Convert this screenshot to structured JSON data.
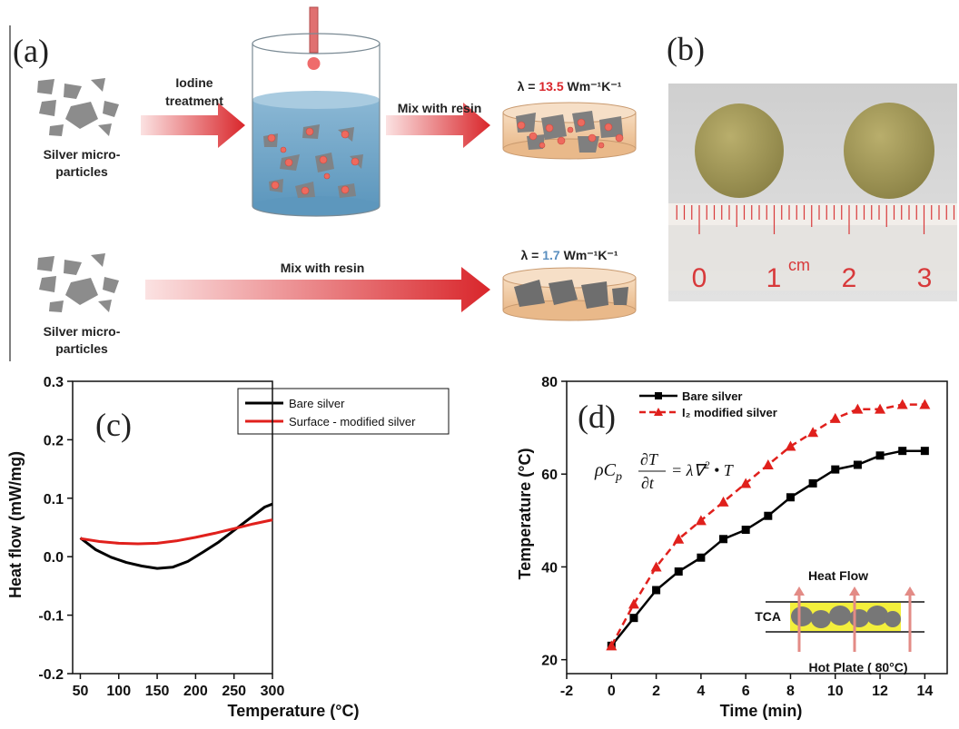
{
  "panel_labels": {
    "a": "(a)",
    "b": "(b)",
    "c": "(c)",
    "d": "(d)"
  },
  "schematic": {
    "particles_label_line1": "Silver micro-",
    "particles_label_line2": "particles",
    "step1_line1": "Iodine",
    "step1_line2": "treatment",
    "mix_label": "Mix with resin",
    "mix_label_long": "Mix with resin",
    "lambda_top_prefix": "λ = ",
    "lambda_top_value": "13.5",
    "lambda_bottom_prefix": "λ = ",
    "lambda_bottom_value": "1.7",
    "lambda_unit": "Wm⁻¹K⁻¹",
    "colors": {
      "arrow": "#d9262b",
      "water": "#6fa5c6",
      "particle": "#8c8c8c",
      "iodine": "#ee6a5e",
      "value_top": "#d9262b",
      "value_bottom": "#5a8fc0",
      "dish": "#f2d1ad"
    }
  },
  "photo": {
    "ruler_numbers": [
      "0",
      "1",
      "2",
      "3"
    ],
    "ruler_unit": "cm",
    "colors": {
      "background": "#d8d8d8",
      "disc": "#a39a5c",
      "ruler_marks": "#d8393a"
    }
  },
  "chart_data": [
    {
      "id": "c",
      "type": "line",
      "xlabel": "Temperature (°C)",
      "ylabel": "Heat flow (mW/mg)",
      "xlim": [
        40,
        300
      ],
      "ylim": [
        -0.2,
        0.3
      ],
      "xticks": [
        "50",
        "100",
        "150",
        "200",
        "250",
        "300"
      ],
      "yticks": [
        "-0.2",
        "-0.1",
        "0.0",
        "0.1",
        "0.2",
        "0.3"
      ],
      "legend_position": "top-right",
      "series": [
        {
          "name": "Bare silver",
          "color": "#000000",
          "x": [
            50,
            70,
            90,
            110,
            130,
            150,
            170,
            190,
            210,
            230,
            250,
            270,
            290,
            300
          ],
          "y": [
            0.032,
            0.012,
            -0.001,
            -0.01,
            -0.016,
            -0.02,
            -0.018,
            -0.008,
            0.008,
            0.025,
            0.045,
            0.065,
            0.085,
            0.09
          ]
        },
        {
          "name": "Surface - modified silver",
          "color": "#e0201c",
          "x": [
            50,
            75,
            100,
            125,
            150,
            175,
            200,
            225,
            250,
            275,
            300
          ],
          "y": [
            0.031,
            0.026,
            0.023,
            0.022,
            0.023,
            0.027,
            0.033,
            0.04,
            0.048,
            0.056,
            0.063
          ]
        }
      ]
    },
    {
      "id": "d",
      "type": "line",
      "xlabel": "Time (min)",
      "ylabel": "Temperature (°C)",
      "xlim": [
        -2,
        15
      ],
      "ylim": [
        17,
        80
      ],
      "xticks": [
        "-2",
        "0",
        "2",
        "4",
        "6",
        "8",
        "10",
        "12",
        "14"
      ],
      "yticks": [
        "20",
        "40",
        "60",
        "80"
      ],
      "legend_position": "top-left",
      "series": [
        {
          "name": "Bare silver",
          "color": "#000000",
          "marker": "square",
          "x": [
            0,
            1,
            2,
            3,
            4,
            5,
            6,
            7,
            8,
            9,
            10,
            11,
            12,
            13,
            14
          ],
          "y": [
            23,
            29,
            35,
            39,
            42,
            46,
            48,
            51,
            55,
            58,
            61,
            62,
            64,
            65,
            65
          ]
        },
        {
          "name": "I₂ modified silver",
          "color": "#e0201c",
          "marker": "triangle",
          "x": [
            0,
            1,
            2,
            3,
            4,
            5,
            6,
            7,
            8,
            9,
            10,
            11,
            12,
            13,
            14
          ],
          "y": [
            23,
            32,
            40,
            46,
            50,
            54,
            58,
            62,
            66,
            69,
            72,
            74,
            74,
            75,
            75
          ]
        }
      ],
      "inset": {
        "heat_flow": "Heat Flow",
        "tca": "TCA",
        "hot_plate": "Hot Plate ( 80°C)",
        "colors": {
          "layer": "#f3ef3c",
          "arrows": "#e38b86"
        }
      }
    }
  ]
}
